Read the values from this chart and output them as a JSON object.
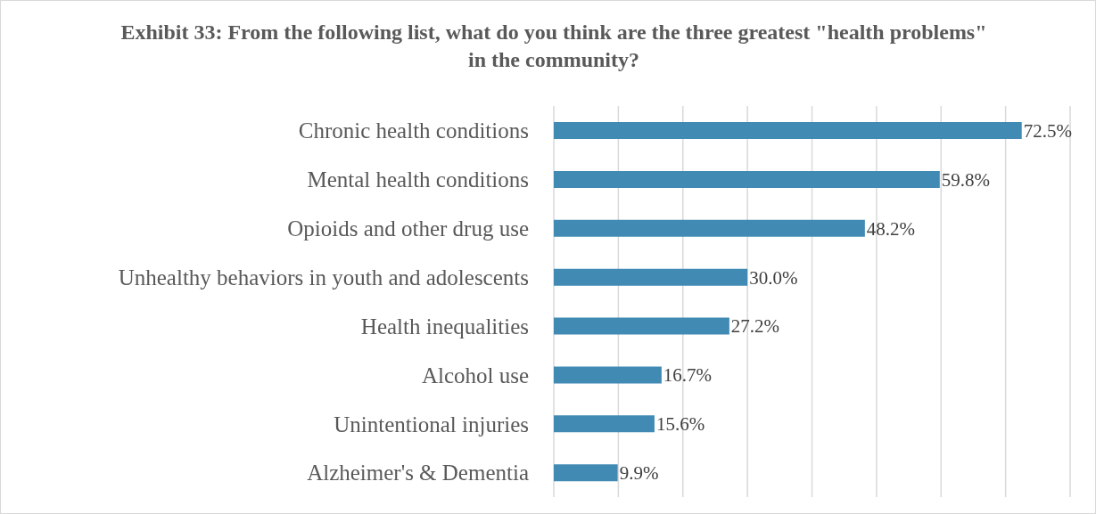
{
  "chart_data": {
    "type": "bar",
    "orientation": "horizontal",
    "title": "Exhibit 33: From the following list, what do you think are the three greatest \"health problems\" in the community?",
    "categories": [
      "Chronic health conditions",
      "Mental health conditions",
      "Opioids and other drug use",
      "Unhealthy behaviors in youth and adolescents",
      "Health inequalities",
      "Alcohol use",
      "Unintentional injuries",
      "Alzheimer's & Dementia"
    ],
    "values": [
      72.5,
      59.8,
      48.2,
      30.0,
      27.2,
      16.7,
      15.6,
      9.9
    ],
    "value_labels": [
      "72.5%",
      "59.8%",
      "48.2%",
      "30.0%",
      "27.2%",
      "16.7%",
      "15.6%",
      "9.9%"
    ],
    "color": "#418ab3",
    "xlim": [
      0,
      80
    ],
    "xticks": [
      {
        "value": 0,
        "label": null
      },
      {
        "value": 10,
        "label": null
      },
      {
        "value": 20,
        "label": null
      },
      {
        "value": 30,
        "label": null
      },
      {
        "value": 40,
        "label": null
      },
      {
        "value": 50,
        "label": null
      },
      {
        "value": 60,
        "label": null
      },
      {
        "value": 70,
        "label": null
      },
      {
        "value": 80,
        "label": null
      }
    ],
    "tick_labels": "y",
    "grid": "x",
    "legend": false
  }
}
